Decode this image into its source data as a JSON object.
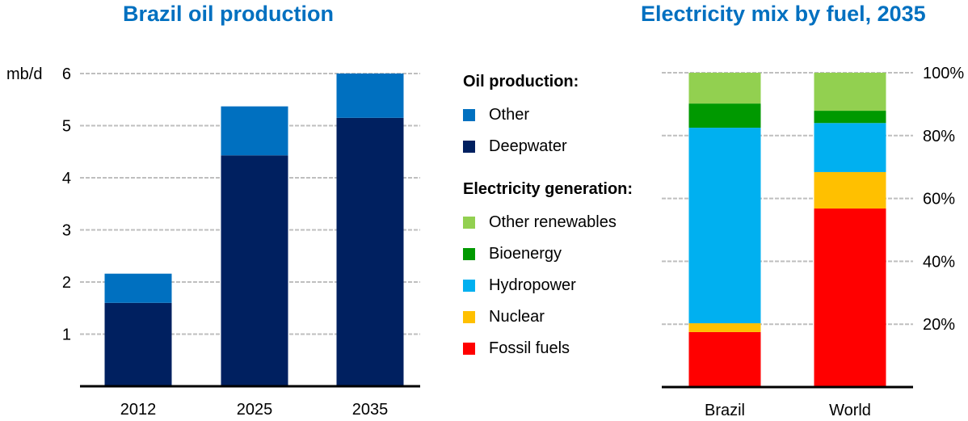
{
  "chart_data": [
    {
      "type": "bar",
      "stacked": true,
      "title": "Brazil oil production",
      "xlabel": "",
      "ylabel": "mb/d",
      "ylim": [
        0,
        6
      ],
      "yticks": [
        1,
        2,
        3,
        4,
        5,
        6
      ],
      "ytick_labels": [
        "1",
        "2",
        "3",
        "4",
        "5",
        "6"
      ],
      "grid": true,
      "categories": [
        "2012",
        "2025",
        "2035"
      ],
      "series": [
        {
          "name": "Deepwater",
          "color": "#002060",
          "values": [
            1.6,
            4.43,
            5.15
          ]
        },
        {
          "name": "Other",
          "color": "#0070c0",
          "values": [
            0.56,
            0.94,
            0.85
          ]
        }
      ]
    },
    {
      "type": "bar",
      "stacked": true,
      "title": "Electricity mix by fuel, 2035",
      "xlabel": "",
      "ylabel": "",
      "ylim": [
        0,
        100
      ],
      "yticks": [
        20,
        40,
        60,
        80,
        100
      ],
      "ytick_labels": [
        "20%",
        "40%",
        "60%",
        "80%",
        "100%"
      ],
      "y_axis_side": "right",
      "grid": true,
      "categories": [
        "Brazil",
        "World"
      ],
      "series": [
        {
          "name": "Fossil fuels",
          "color": "#ff0000",
          "values": [
            17.5,
            56.8
          ]
        },
        {
          "name": "Nuclear",
          "color": "#ffc000",
          "values": [
            2.8,
            11.6
          ]
        },
        {
          "name": "Hydropower",
          "color": "#00b0f0",
          "values": [
            62.2,
            15.6
          ]
        },
        {
          "name": "Bioenergy",
          "color": "#009900",
          "values": [
            7.7,
            3.9
          ]
        },
        {
          "name": "Other renewables",
          "color": "#92d050",
          "values": [
            9.8,
            12.1
          ]
        }
      ]
    }
  ],
  "legend": {
    "groups": [
      {
        "heading": "Oil production:",
        "items": [
          {
            "label": "Other",
            "color": "#0070c0"
          },
          {
            "label": "Deepwater",
            "color": "#002060"
          }
        ]
      },
      {
        "heading": "Electricity generation:",
        "items": [
          {
            "label": "Other renewables",
            "color": "#92d050"
          },
          {
            "label": "Bioenergy",
            "color": "#009900"
          },
          {
            "label": "Hydropower",
            "color": "#00b0f0"
          },
          {
            "label": "Nuclear",
            "color": "#ffc000"
          },
          {
            "label": "Fossil fuels",
            "color": "#ff0000"
          }
        ]
      }
    ]
  }
}
